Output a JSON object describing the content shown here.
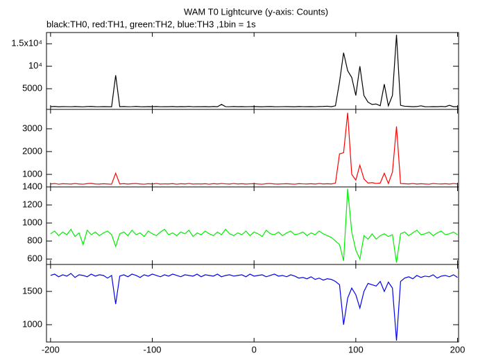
{
  "chart_data": {
    "type": "line",
    "title": "WAM T0 Lightcurve (y-axis: Counts)",
    "subtitle": "black:TH0, red:TH1, green:TH2, blue:TH3 ,1bin = 1s",
    "xlim": [
      -204,
      201
    ],
    "xticks": [
      -200,
      -100,
      0,
      100,
      200
    ],
    "x": [
      -200,
      -196,
      -192,
      -188,
      -184,
      -180,
      -176,
      -172,
      -168,
      -164,
      -160,
      -156,
      -152,
      -148,
      -144,
      -140,
      -136,
      -132,
      -128,
      -124,
      -120,
      -116,
      -112,
      -108,
      -104,
      -100,
      -96,
      -92,
      -88,
      -84,
      -80,
      -76,
      -72,
      -68,
      -64,
      -60,
      -56,
      -52,
      -48,
      -44,
      -40,
      -36,
      -32,
      -28,
      -24,
      -20,
      -16,
      -12,
      -8,
      -4,
      0,
      4,
      8,
      12,
      16,
      20,
      24,
      28,
      32,
      36,
      40,
      44,
      48,
      52,
      56,
      60,
      64,
      68,
      72,
      76,
      80,
      84,
      88,
      92,
      96,
      100,
      104,
      108,
      112,
      116,
      120,
      124,
      128,
      132,
      136,
      140,
      144,
      148,
      152,
      156,
      160,
      164,
      168,
      172,
      176,
      180,
      184,
      188,
      192,
      196,
      200
    ],
    "panels": [
      {
        "ylim": [
          400,
          17500
        ],
        "yticks": [
          {
            "value": 5000,
            "label": "5000"
          },
          {
            "value": 10000,
            "label": "10⁴"
          },
          {
            "value": 15000,
            "label": "1.5x10⁴"
          }
        ],
        "series": [
          {
            "color": "#000000",
            "values": [
              1000,
              1050,
              980,
              1020,
              1010,
              990,
              1040,
              1000,
              970,
              1030,
              1060,
              1000,
              990,
              1020,
              1000,
              980,
              8000,
              1000,
              1030,
              990,
              1010,
              1050,
              1000,
              980,
              1020,
              1000,
              1040,
              990,
              1010,
              1000,
              1030,
              980,
              1020,
              1000,
              1050,
              990,
              1010,
              1000,
              1020,
              980,
              1030,
              1000,
              1500,
              1010,
              990,
              1040,
              1000,
              1020,
              990,
              1010,
              1030,
              1000,
              980,
              1020,
              1040,
              1000,
              990,
              1010,
              1020,
              1000,
              980,
              1030,
              1010,
              1000,
              1020,
              990,
              1040,
              1050,
              1100,
              1000,
              1200,
              6500,
              13000,
              9000,
              7500,
              3500,
              10000,
              3500,
              2000,
              1500,
              1600,
              1200,
              6000,
              1200,
              3500,
              17000,
              1300,
              1100,
              1050,
              1000,
              1030,
              1200,
              1000,
              990,
              1020,
              1000,
              1050,
              1000,
              1300,
              1000,
              1020
            ]
          }
        ]
      },
      {
        "ylim": [
          450,
          3850
        ],
        "yticks": [
          1000,
          2000,
          3000
        ],
        "series": [
          {
            "color": "#ff0000",
            "values": [
              580,
              600,
              570,
              590,
              585,
              575,
              600,
              580,
              570,
              595,
              605,
              580,
              575,
              590,
              580,
              570,
              1050,
              580,
              595,
              575,
              590,
              600,
              580,
              570,
              590,
              580,
              600,
              575,
              585,
              580,
              595,
              570,
              590,
              580,
              600,
              575,
              585,
              580,
              590,
              570,
              595,
              580,
              600,
              585,
              575,
              600,
              580,
              590,
              575,
              585,
              595,
              580,
              570,
              590,
              600,
              580,
              575,
              585,
              590,
              580,
              570,
              595,
              585,
              580,
              590,
              575,
              600,
              580,
              590,
              580,
              620,
              1900,
              1950,
              3700,
              1000,
              750,
              1400,
              800,
              620,
              640,
              600,
              620,
              1050,
              600,
              1100,
              3100,
              600,
              590,
              580,
              600,
              575,
              590,
              580,
              570,
              600,
              585,
              580,
              590,
              575,
              600,
              580
            ]
          }
        ]
      },
      {
        "ylim": [
          540,
          1400
        ],
        "yticks": [
          600,
          800,
          1000,
          1200,
          1400
        ],
        "series": [
          {
            "color": "#00ee00",
            "values": [
              880,
              910,
              860,
              900,
              870,
              930,
              850,
              890,
              760,
              920,
              870,
              900,
              860,
              890,
              910,
              870,
              740,
              880,
              900,
              860,
              920,
              870,
              890,
              850,
              910,
              880,
              860,
              900,
              930,
              870,
              890,
              860,
              900,
              880,
              920,
              850,
              890,
              870,
              910,
              880,
              860,
              900,
              870,
              930,
              880,
              860,
              890,
              870,
              910,
              860,
              900,
              880,
              850,
              920,
              880,
              870,
              900,
              860,
              890,
              910,
              870,
              880,
              900,
              860,
              890,
              870,
              910,
              880,
              860,
              840,
              800,
              760,
              580,
              1380,
              900,
              700,
              600,
              860,
              820,
              880,
              820,
              860,
              880,
              850,
              870,
              560,
              880,
              900,
              860,
              890,
              920,
              870,
              880,
              900,
              860,
              890,
              910,
              870,
              880,
              900,
              870
            ]
          }
        ]
      },
      {
        "ylim": [
          740,
          1905
        ],
        "yticks": [
          1000,
          1500
        ],
        "series": [
          {
            "color": "#0000ee",
            "values": [
              1740,
              1760,
              1720,
              1750,
              1730,
              1770,
              1710,
              1750,
              1740,
              1720,
              1760,
              1730,
              1750,
              1740,
              1700,
              1740,
              1310,
              1730,
              1750,
              1720,
              1760,
              1740,
              1710,
              1750,
              1730,
              1760,
              1740,
              1720,
              1750,
              1730,
              1760,
              1740,
              1720,
              1750,
              1740,
              1730,
              1760,
              1720,
              1750,
              1740,
              1730,
              1760,
              1720,
              1740,
              1750,
              1730,
              1740,
              1750,
              1720,
              1760,
              1730,
              1740,
              1750,
              1720,
              1740,
              1760,
              1730,
              1740,
              1720,
              1750,
              1730,
              1700,
              1710,
              1690,
              1720,
              1680,
              1700,
              1670,
              1690,
              1680,
              1650,
              1600,
              1000,
              1400,
              1550,
              1450,
              1250,
              1500,
              1620,
              1600,
              1580,
              1650,
              1500,
              1640,
              1550,
              760,
              1650,
              1700,
              1720,
              1690,
              1740,
              1710,
              1730,
              1720,
              1750,
              1700,
              1730,
              1740,
              1720,
              1750,
              1710
            ]
          }
        ]
      }
    ]
  }
}
